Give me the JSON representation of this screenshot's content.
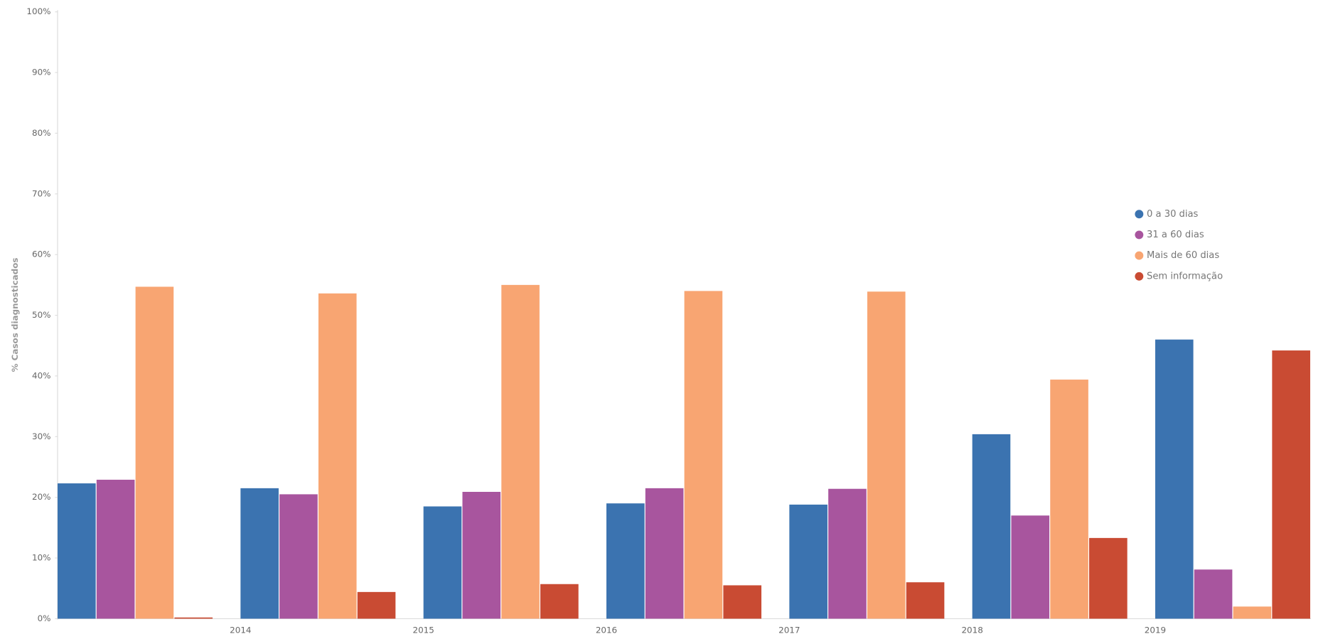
{
  "chart_data": {
    "type": "bar",
    "y_label": "% Casos diagnosticados",
    "categories": [
      null,
      "2014",
      "2015",
      "2016",
      "2017",
      "2018",
      "2019"
    ],
    "series": [
      {
        "name": "0 a 30 dias",
        "color": "#3b73b0",
        "values": [
          22.3,
          21.5,
          18.5,
          19,
          18.8,
          30.4,
          46
        ]
      },
      {
        "name": "31 a 60 dias",
        "color": "#a8559e",
        "values": [
          22.9,
          20.5,
          20.9,
          21.5,
          21.4,
          17,
          8.1
        ]
      },
      {
        "name": "Mais de 60 dias",
        "color": "#f8a572",
        "values": [
          54.7,
          53.6,
          55,
          54,
          53.9,
          39.4,
          2
        ]
      },
      {
        "name": "Sem informação",
        "color": "#c94b33",
        "values": [
          0.2,
          4.4,
          5.7,
          5.5,
          6,
          13.3,
          44.2
        ]
      }
    ],
    "ylim": [
      0,
      100
    ],
    "yticks": [
      {
        "value": 0,
        "label": "0%"
      },
      {
        "value": 10,
        "label": "10%"
      },
      {
        "value": 20,
        "label": "20%"
      },
      {
        "value": 30,
        "label": "30%"
      },
      {
        "value": 40,
        "label": "40%"
      },
      {
        "value": 50,
        "label": "50%"
      },
      {
        "value": 60,
        "label": "60%"
      },
      {
        "value": 70,
        "label": "70%"
      },
      {
        "value": 80,
        "label": "80%"
      },
      {
        "value": 90,
        "label": "90%"
      },
      {
        "value": 100,
        "label": "100%"
      }
    ],
    "grid": false
  }
}
